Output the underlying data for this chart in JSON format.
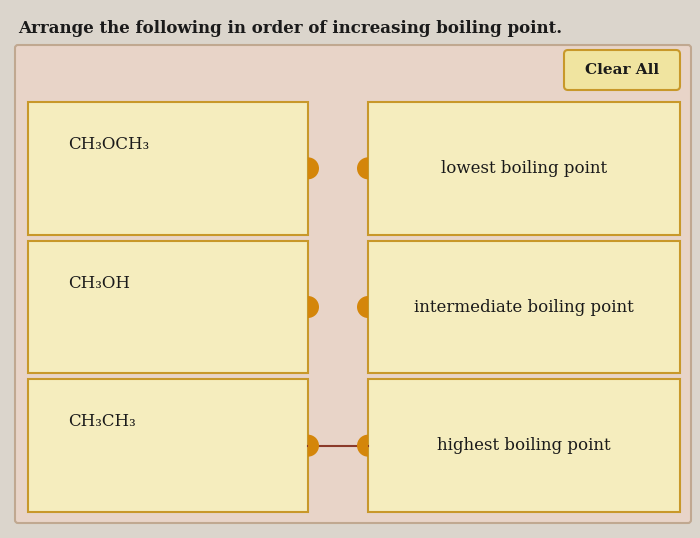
{
  "title": "Arrange the following in order of increasing boiling point.",
  "title_fontsize": 12,
  "bg_color": "#dbd5cc",
  "outer_bg": "#e8d4c8",
  "outer_border": "#c0a890",
  "cell_bg": "#f5edbe",
  "cell_border": "#c8982a",
  "cell_text_color": "#1a1a1a",
  "clear_all_bg": "#f0e4a0",
  "clear_all_border": "#c8982a",
  "left_labels": [
    "CH₃OCH₃",
    "CH₃OH",
    "CH₃CH₃"
  ],
  "right_labels": [
    "lowest boiling point",
    "intermediate boiling point",
    "highest boiling point"
  ],
  "connector_color": "#8b3a2a",
  "dot_color": "#d4860a",
  "figsize": [
    7.0,
    5.38
  ],
  "dpi": 100
}
